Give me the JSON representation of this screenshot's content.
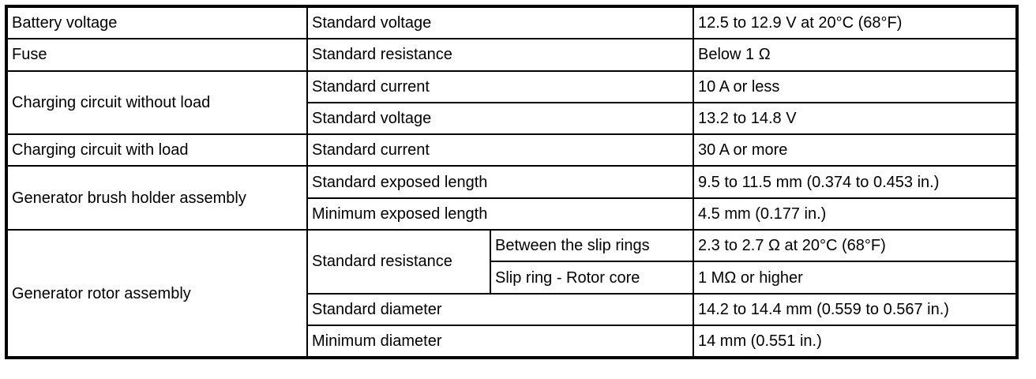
{
  "rows": {
    "battery": {
      "item": "Battery voltage",
      "condition": "Standard voltage",
      "value": "12.5 to 12.9 V at 20°C (68°F)"
    },
    "fuse": {
      "item": "Fuse",
      "condition": "Standard resistance",
      "value": "Below 1 Ω"
    },
    "no_load": {
      "item": "Charging circuit without load",
      "condition_1": "Standard current",
      "value_1": "10 A or less",
      "condition_2": "Standard voltage",
      "value_2": "13.2 to 14.8 V"
    },
    "with_load": {
      "item": "Charging circuit with load",
      "condition": "Standard current",
      "value": "30 A or more"
    },
    "brush": {
      "item": "Generator brush holder assembly",
      "condition_1": "Standard exposed length",
      "value_1": "9.5 to 11.5 mm (0.374 to 0.453 in.)",
      "condition_2": "Minimum exposed length",
      "value_2": "4.5 mm (0.177 in.)"
    },
    "rotor": {
      "item": "Generator rotor assembly",
      "resistance": "Standard resistance",
      "sub_1": "Between the slip rings",
      "value_1": "2.3 to 2.7 Ω at 20°C (68°F)",
      "sub_2": "Slip ring - Rotor core",
      "value_2": "1 MΩ or higher",
      "condition_3": "Standard diameter",
      "value_3": "14.2 to 14.4 mm (0.559 to 0.567 in.)",
      "condition_4": "Minimum diameter",
      "value_4": "14 mm (0.551 in.)"
    }
  }
}
